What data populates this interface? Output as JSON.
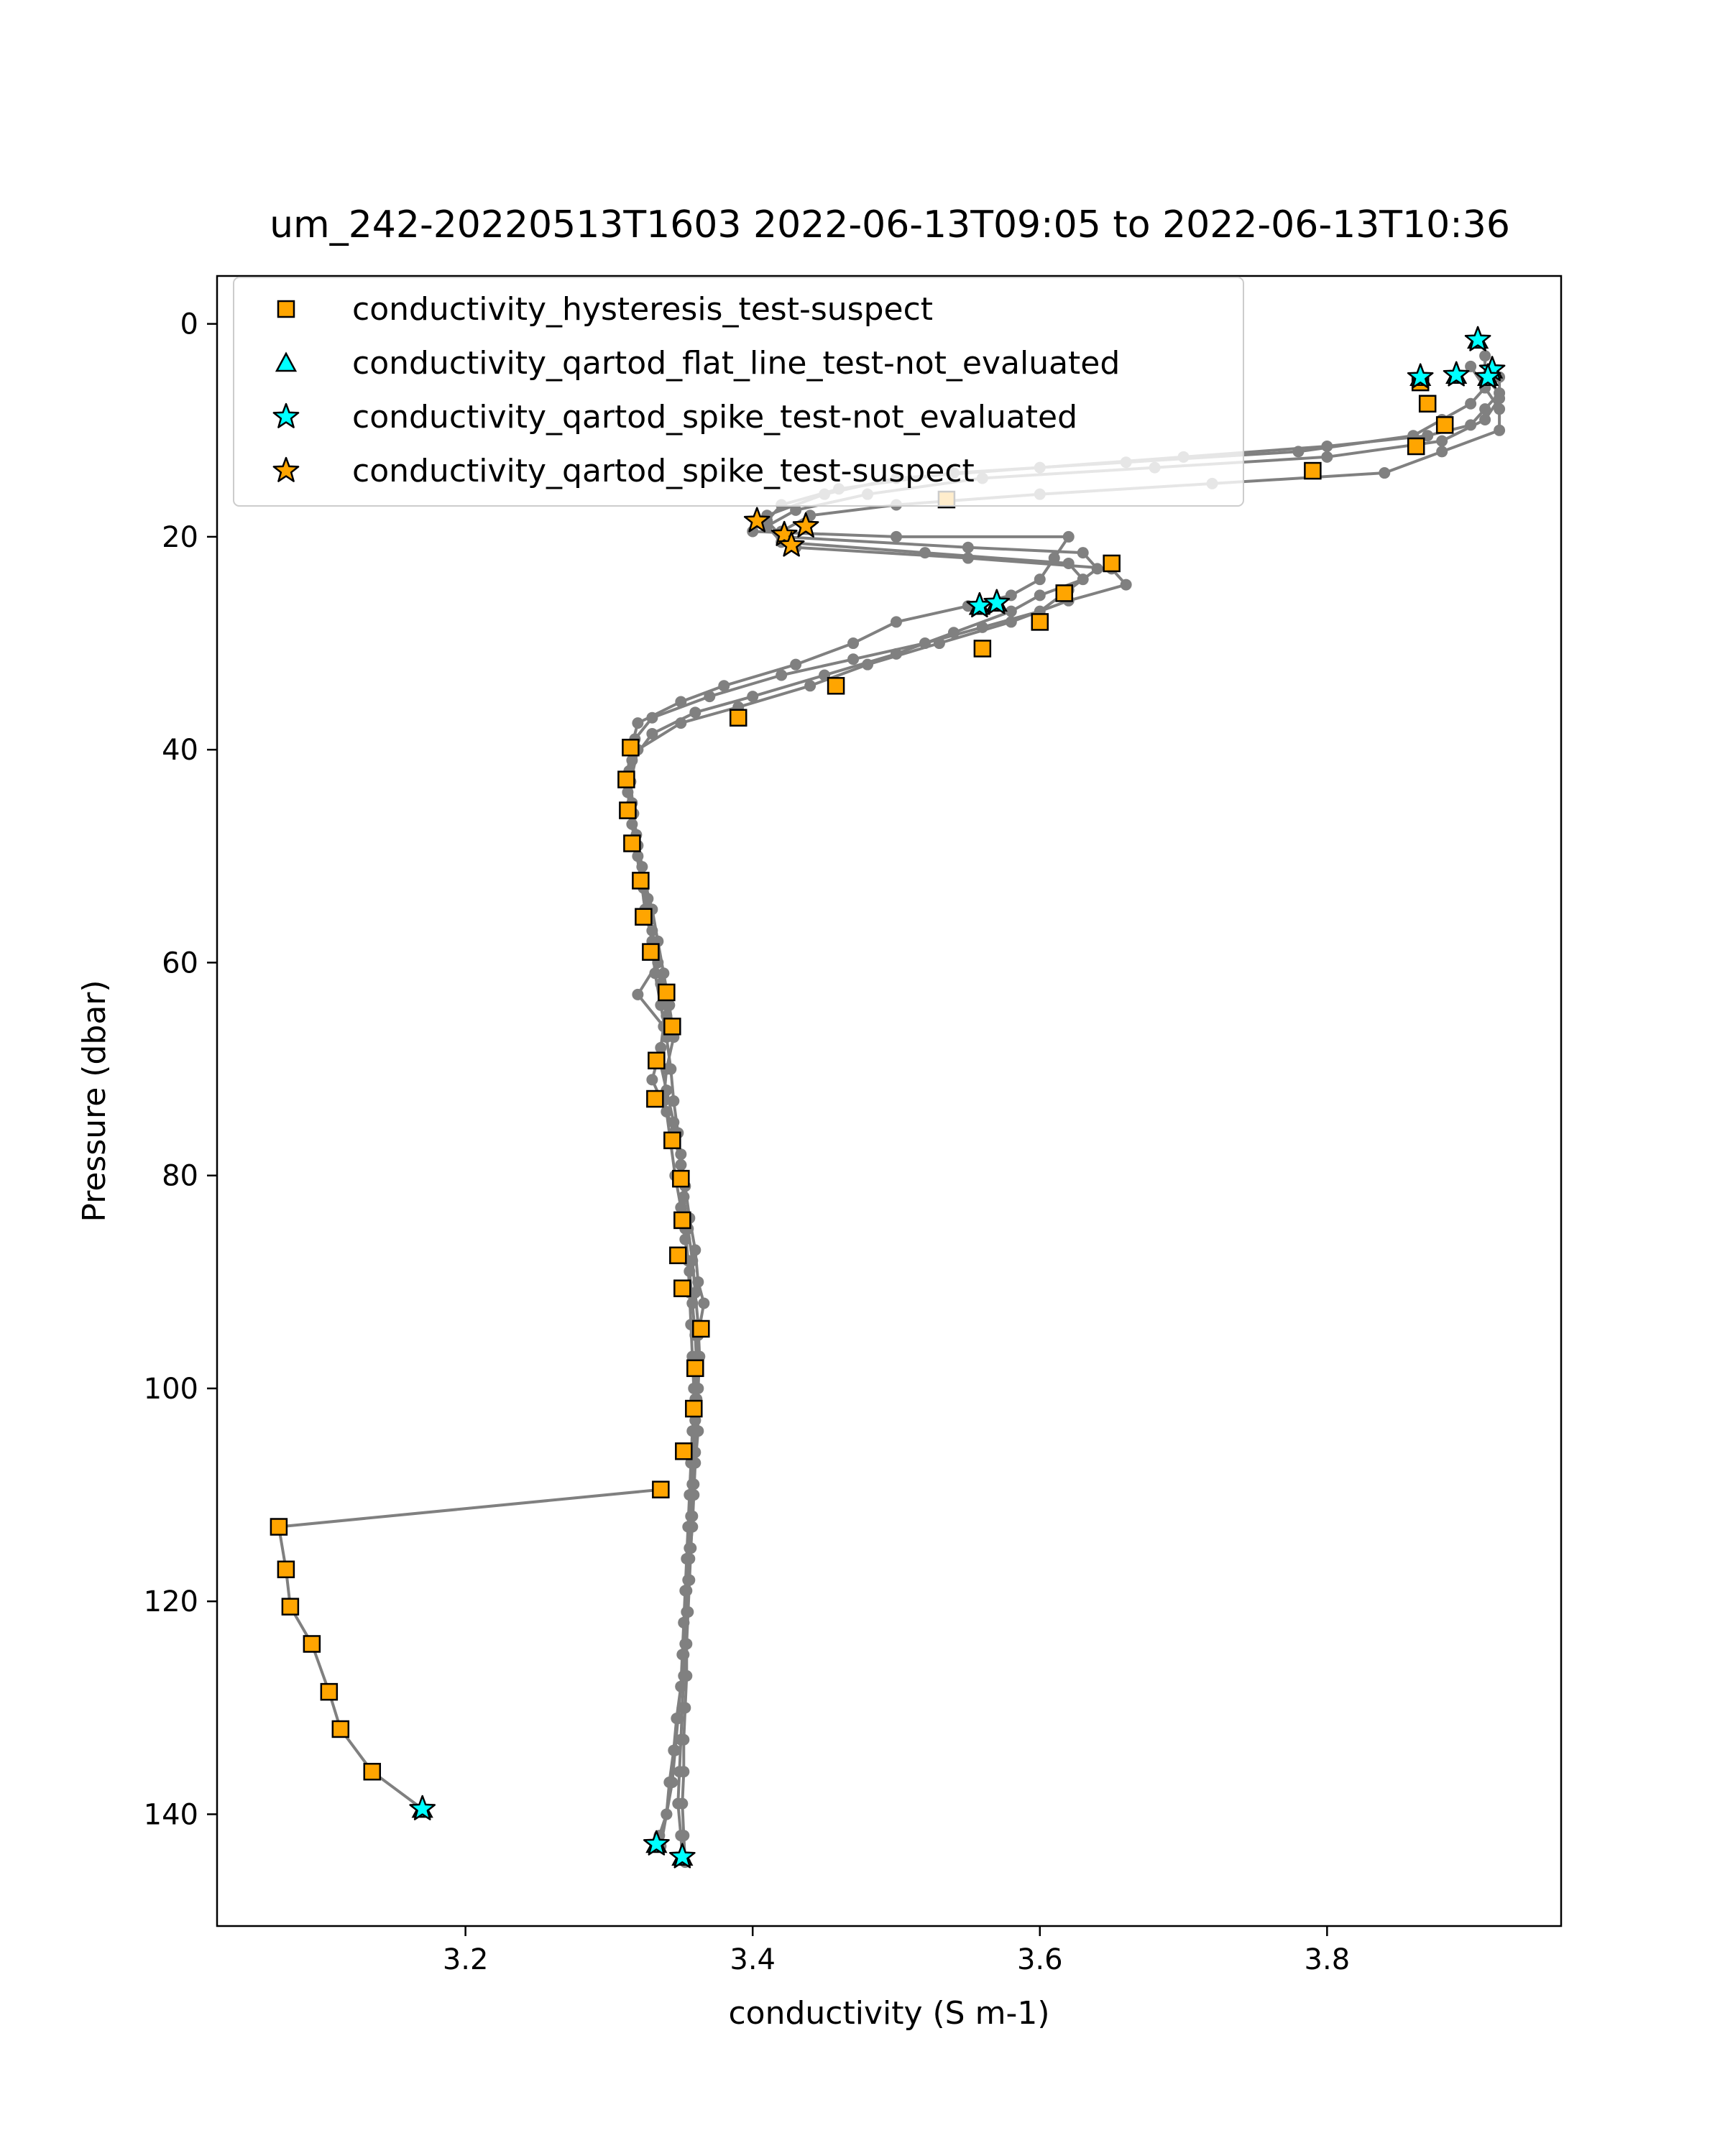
{
  "chart_data": {
    "type": "scatter",
    "title": "um_242-20220513T1603 2022-06-13T09:05 to 2022-06-13T10:36",
    "xlabel": "conductivity (S m-1)",
    "ylabel": "Pressure (dbar)",
    "xlim": [
      3.027,
      3.963
    ],
    "ylim": [
      150.5,
      -4.5
    ],
    "y_inverted": true,
    "grid": false,
    "legend_position": "top-left",
    "xticks": [
      3.2,
      3.4,
      3.6,
      3.8
    ],
    "xtick_labels": [
      "3.2",
      "3.4",
      "3.6",
      "3.8"
    ],
    "yticks": [
      0,
      20,
      40,
      60,
      80,
      100,
      120,
      140
    ],
    "ytick_labels": [
      "0",
      "20",
      "40",
      "60",
      "80",
      "100",
      "120",
      "140"
    ],
    "colors": {
      "profile_line": "#808080",
      "hysteresis": "#ffa500",
      "not_evaluated": "#00ffff",
      "spike_suspect": "#ffa500",
      "marker_edge": "#000000"
    },
    "profiles": [
      [
        [
          3.91,
          3.0
        ],
        [
          3.91,
          5.0
        ],
        [
          3.92,
          6.5
        ],
        [
          3.91,
          8.0
        ],
        [
          3.9,
          9.5
        ],
        [
          3.87,
          10.5
        ],
        [
          3.8,
          11.5
        ],
        [
          3.7,
          12.5
        ],
        [
          3.6,
          13.5
        ],
        [
          3.5,
          14.5
        ],
        [
          3.45,
          16.0
        ],
        [
          3.41,
          18.0
        ],
        [
          3.4,
          19.5
        ],
        [
          3.5,
          20.0
        ],
        [
          3.62,
          20.0
        ],
        [
          3.61,
          22.0
        ],
        [
          3.6,
          24.0
        ],
        [
          3.58,
          25.5
        ],
        [
          3.55,
          26.5
        ],
        [
          3.5,
          28.0
        ],
        [
          3.47,
          30.0
        ],
        [
          3.43,
          32.0
        ],
        [
          3.38,
          34.0
        ],
        [
          3.35,
          35.5
        ],
        [
          3.32,
          37.5
        ],
        [
          3.315,
          40.0
        ],
        [
          3.312,
          43.0
        ],
        [
          3.315,
          46.0
        ],
        [
          3.318,
          49.0
        ],
        [
          3.322,
          52.0
        ],
        [
          3.325,
          55.0
        ],
        [
          3.33,
          58.0
        ],
        [
          3.332,
          61.0
        ],
        [
          3.336,
          64.0
        ],
        [
          3.34,
          67.0
        ],
        [
          3.343,
          70.0
        ],
        [
          3.345,
          73.0
        ],
        [
          3.348,
          76.0
        ],
        [
          3.35,
          79.0
        ],
        [
          3.352,
          82.0
        ],
        [
          3.353,
          85.0
        ],
        [
          3.355,
          88.0
        ],
        [
          3.356,
          91.0
        ],
        [
          3.357,
          94.0
        ],
        [
          3.358,
          97.0
        ],
        [
          3.359,
          100.0
        ],
        [
          3.36,
          103.0
        ],
        [
          3.359,
          106.0
        ],
        [
          3.358,
          109.0
        ],
        [
          3.357,
          112.0
        ],
        [
          3.356,
          115.0
        ],
        [
          3.355,
          118.0
        ],
        [
          3.354,
          121.0
        ],
        [
          3.353,
          124.0
        ],
        [
          3.352,
          127.0
        ],
        [
          3.351,
          130.0
        ],
        [
          3.35,
          133.0
        ],
        [
          3.349,
          136.0
        ],
        [
          3.348,
          139.0
        ],
        [
          3.35,
          142.0
        ],
        [
          3.351,
          144.0
        ]
      ],
      [
        [
          3.9,
          4.0
        ],
        [
          3.91,
          6.0
        ],
        [
          3.9,
          7.5
        ],
        [
          3.88,
          9.0
        ],
        [
          3.86,
          10.5
        ],
        [
          3.78,
          12.0
        ],
        [
          3.66,
          13.0
        ],
        [
          3.54,
          14.0
        ],
        [
          3.46,
          15.5
        ],
        [
          3.42,
          17.0
        ],
        [
          3.41,
          18.5
        ],
        [
          3.42,
          20.0
        ],
        [
          3.55,
          21.0
        ],
        [
          3.63,
          21.5
        ],
        [
          3.64,
          23.0
        ],
        [
          3.62,
          25.0
        ],
        [
          3.6,
          27.0
        ],
        [
          3.56,
          28.5
        ],
        [
          3.52,
          30.0
        ],
        [
          3.47,
          31.5
        ],
        [
          3.42,
          33.0
        ],
        [
          3.37,
          35.0
        ],
        [
          3.33,
          37.0
        ],
        [
          3.318,
          39.0
        ],
        [
          3.314,
          42.0
        ],
        [
          3.316,
          45.0
        ],
        [
          3.319,
          48.0
        ],
        [
          3.323,
          51.0
        ],
        [
          3.327,
          54.0
        ],
        [
          3.33,
          57.0
        ],
        [
          3.334,
          60.0
        ],
        [
          3.32,
          63.0
        ],
        [
          3.338,
          66.0
        ],
        [
          3.335,
          69.0
        ],
        [
          3.34,
          72.0
        ],
        [
          3.345,
          75.0
        ],
        [
          3.35,
          78.0
        ],
        [
          3.353,
          81.0
        ],
        [
          3.356,
          84.0
        ],
        [
          3.36,
          87.0
        ],
        [
          3.362,
          90.0
        ],
        [
          3.366,
          92.0
        ],
        [
          3.362,
          95.0
        ],
        [
          3.36,
          98.0
        ],
        [
          3.361,
          101.0
        ],
        [
          3.362,
          104.0
        ],
        [
          3.36,
          107.0
        ],
        [
          3.359,
          110.0
        ],
        [
          3.358,
          113.0
        ],
        [
          3.356,
          116.0
        ],
        [
          3.354,
          119.0
        ],
        [
          3.352,
          122.0
        ],
        [
          3.352,
          125.0
        ],
        [
          3.35,
          128.0
        ],
        [
          3.347,
          131.0
        ],
        [
          3.345,
          134.0
        ],
        [
          3.342,
          137.0
        ],
        [
          3.34,
          140.0
        ],
        [
          3.336,
          143.0
        ]
      ],
      [
        [
          3.92,
          5.0
        ],
        [
          3.92,
          7.0
        ],
        [
          3.91,
          9.0
        ],
        [
          3.88,
          11.0
        ],
        [
          3.8,
          12.5
        ],
        [
          3.68,
          13.5
        ],
        [
          3.56,
          14.5
        ],
        [
          3.48,
          16.0
        ],
        [
          3.43,
          17.5
        ],
        [
          3.41,
          19.0
        ],
        [
          3.42,
          20.5
        ],
        [
          3.52,
          21.5
        ],
        [
          3.62,
          22.5
        ],
        [
          3.63,
          24.0
        ],
        [
          3.6,
          25.5
        ],
        [
          3.58,
          27.0
        ],
        [
          3.54,
          29.0
        ],
        [
          3.5,
          31.0
        ],
        [
          3.45,
          33.0
        ],
        [
          3.4,
          35.0
        ],
        [
          3.36,
          36.5
        ],
        [
          3.33,
          38.5
        ],
        [
          3.316,
          41.0
        ],
        [
          3.313,
          44.0
        ],
        [
          3.316,
          47.0
        ],
        [
          3.32,
          50.0
        ],
        [
          3.324,
          53.0
        ],
        [
          3.328,
          56.0
        ],
        [
          3.331,
          59.0
        ],
        [
          3.336,
          62.0
        ],
        [
          3.34,
          65.0
        ],
        [
          3.336,
          68.0
        ],
        [
          3.33,
          71.0
        ],
        [
          3.34,
          74.0
        ],
        [
          3.343,
          77.0
        ],
        [
          3.346,
          80.0
        ],
        [
          3.35,
          83.0
        ],
        [
          3.353,
          86.0
        ],
        [
          3.356,
          89.0
        ],
        [
          3.358,
          92.0
        ],
        [
          3.36,
          95.0
        ],
        [
          3.361,
          98.0
        ],
        [
          3.36,
          101.0
        ],
        [
          3.358,
          104.0
        ],
        [
          3.357,
          107.0
        ],
        [
          3.356,
          110.0
        ],
        [
          3.355,
          113.0
        ],
        [
          3.354,
          116.0
        ],
        [
          3.353,
          119.0
        ],
        [
          3.352,
          122.0
        ],
        [
          3.351,
          125.0
        ],
        [
          3.35,
          128.0
        ],
        [
          3.348,
          131.0
        ],
        [
          3.346,
          134.0
        ],
        [
          3.344,
          137.0
        ],
        [
          3.34,
          140.0
        ],
        [
          3.335,
          142.0
        ]
      ],
      [
        [
          3.91,
          6.0
        ],
        [
          3.92,
          8.0
        ],
        [
          3.92,
          10.0
        ],
        [
          3.88,
          12.0
        ],
        [
          3.84,
          14.0
        ],
        [
          3.72,
          15.0
        ],
        [
          3.6,
          16.0
        ],
        [
          3.5,
          17.0
        ],
        [
          3.44,
          18.0
        ],
        [
          3.42,
          19.5
        ],
        [
          3.43,
          21.0
        ],
        [
          3.55,
          22.0
        ],
        [
          3.65,
          23.0
        ],
        [
          3.66,
          24.5
        ],
        [
          3.62,
          26.0
        ],
        [
          3.58,
          28.0
        ],
        [
          3.53,
          30.0
        ],
        [
          3.48,
          32.0
        ],
        [
          3.44,
          34.0
        ],
        [
          3.39,
          36.0
        ],
        [
          3.35,
          37.5
        ],
        [
          3.32,
          40.0
        ],
        [
          3.315,
          43.0
        ],
        [
          3.317,
          46.0
        ],
        [
          3.32,
          49.0
        ],
        [
          3.324,
          52.0
        ],
        [
          3.33,
          55.0
        ],
        [
          3.334,
          58.0
        ],
        [
          3.338,
          61.0
        ],
        [
          3.342,
          64.0
        ],
        [
          3.345,
          67.0
        ],
        [
          3.34,
          70.0
        ],
        [
          3.338,
          73.0
        ],
        [
          3.345,
          76.0
        ],
        [
          3.35,
          79.0
        ],
        [
          3.352,
          82.0
        ],
        [
          3.355,
          85.0
        ],
        [
          3.358,
          88.0
        ],
        [
          3.36,
          91.0
        ],
        [
          3.362,
          94.0
        ],
        [
          3.363,
          97.0
        ],
        [
          3.362,
          100.0
        ],
        [
          3.36,
          103.0
        ],
        [
          3.36,
          106.0
        ],
        [
          3.359,
          109.0
        ],
        [
          3.358,
          112.0
        ],
        [
          3.357,
          115.0
        ],
        [
          3.356,
          118.0
        ],
        [
          3.355,
          121.0
        ],
        [
          3.354,
          124.0
        ],
        [
          3.354,
          127.0
        ],
        [
          3.353,
          130.0
        ],
        [
          3.352,
          133.0
        ],
        [
          3.352,
          136.0
        ],
        [
          3.351,
          139.0
        ],
        [
          3.352,
          142.0
        ],
        [
          3.353,
          144.5
        ]
      ],
      [
        [
          3.336,
          109.5
        ],
        [
          3.07,
          113.0
        ],
        [
          3.075,
          117.0
        ],
        [
          3.078,
          120.5
        ],
        [
          3.093,
          124.0
        ],
        [
          3.105,
          128.5
        ],
        [
          3.113,
          132.0
        ],
        [
          3.135,
          136.0
        ],
        [
          3.17,
          139.5
        ]
      ]
    ],
    "series": [
      {
        "name": "conductivity_hysteresis_test-suspect",
        "marker": "square",
        "color": "#ffa500",
        "points": [
          [
            3.865,
            5.5
          ],
          [
            3.87,
            7.5
          ],
          [
            3.882,
            9.5
          ],
          [
            3.862,
            11.5
          ],
          [
            3.79,
            13.8
          ],
          [
            3.535,
            16.5
          ],
          [
            3.65,
            22.5
          ],
          [
            3.617,
            25.3
          ],
          [
            3.6,
            28.0
          ],
          [
            3.56,
            30.5
          ],
          [
            3.458,
            34.0
          ],
          [
            3.39,
            37.0
          ],
          [
            3.315,
            39.8
          ],
          [
            3.312,
            42.8
          ],
          [
            3.313,
            45.7
          ],
          [
            3.316,
            48.8
          ],
          [
            3.322,
            52.3
          ],
          [
            3.324,
            55.7
          ],
          [
            3.329,
            59.0
          ],
          [
            3.34,
            62.8
          ],
          [
            3.344,
            66.0
          ],
          [
            3.333,
            69.2
          ],
          [
            3.332,
            72.8
          ],
          [
            3.344,
            76.7
          ],
          [
            3.35,
            80.3
          ],
          [
            3.351,
            84.2
          ],
          [
            3.348,
            87.5
          ],
          [
            3.351,
            90.6
          ],
          [
            3.364,
            94.4
          ],
          [
            3.36,
            98.1
          ],
          [
            3.359,
            101.9
          ],
          [
            3.352,
            105.9
          ],
          [
            3.336,
            109.5
          ],
          [
            3.07,
            113.0
          ],
          [
            3.075,
            117.0
          ],
          [
            3.078,
            120.5
          ],
          [
            3.093,
            124.0
          ],
          [
            3.105,
            128.5
          ],
          [
            3.113,
            132.0
          ],
          [
            3.135,
            136.0
          ]
        ]
      },
      {
        "name": "conductivity_qartod_flat_line_test-not_evaluated",
        "marker": "triangle",
        "color": "#00ffff",
        "points": [
          [
            3.905,
            1.5
          ],
          [
            3.865,
            5.0
          ],
          [
            3.89,
            4.8
          ],
          [
            3.915,
            4.3
          ],
          [
            3.912,
            5.0
          ],
          [
            3.558,
            26.5
          ],
          [
            3.57,
            26.2
          ],
          [
            3.17,
            139.5
          ],
          [
            3.333,
            142.8
          ],
          [
            3.351,
            144.0
          ]
        ]
      },
      {
        "name": "conductivity_qartod_spike_test-not_evaluated",
        "marker": "star",
        "color": "#00ffff",
        "points": [
          [
            3.905,
            1.5
          ],
          [
            3.865,
            5.0
          ],
          [
            3.89,
            4.8
          ],
          [
            3.915,
            4.3
          ],
          [
            3.912,
            5.0
          ],
          [
            3.558,
            26.5
          ],
          [
            3.57,
            26.2
          ],
          [
            3.17,
            139.5
          ],
          [
            3.333,
            142.8
          ],
          [
            3.351,
            144.0
          ]
        ]
      },
      {
        "name": "conductivity_qartod_spike_test-suspect",
        "marker": "star",
        "color": "#ffa500",
        "points": [
          [
            3.403,
            18.5
          ],
          [
            3.422,
            19.8
          ],
          [
            3.437,
            19.0
          ],
          [
            3.427,
            20.8
          ]
        ]
      }
    ]
  }
}
